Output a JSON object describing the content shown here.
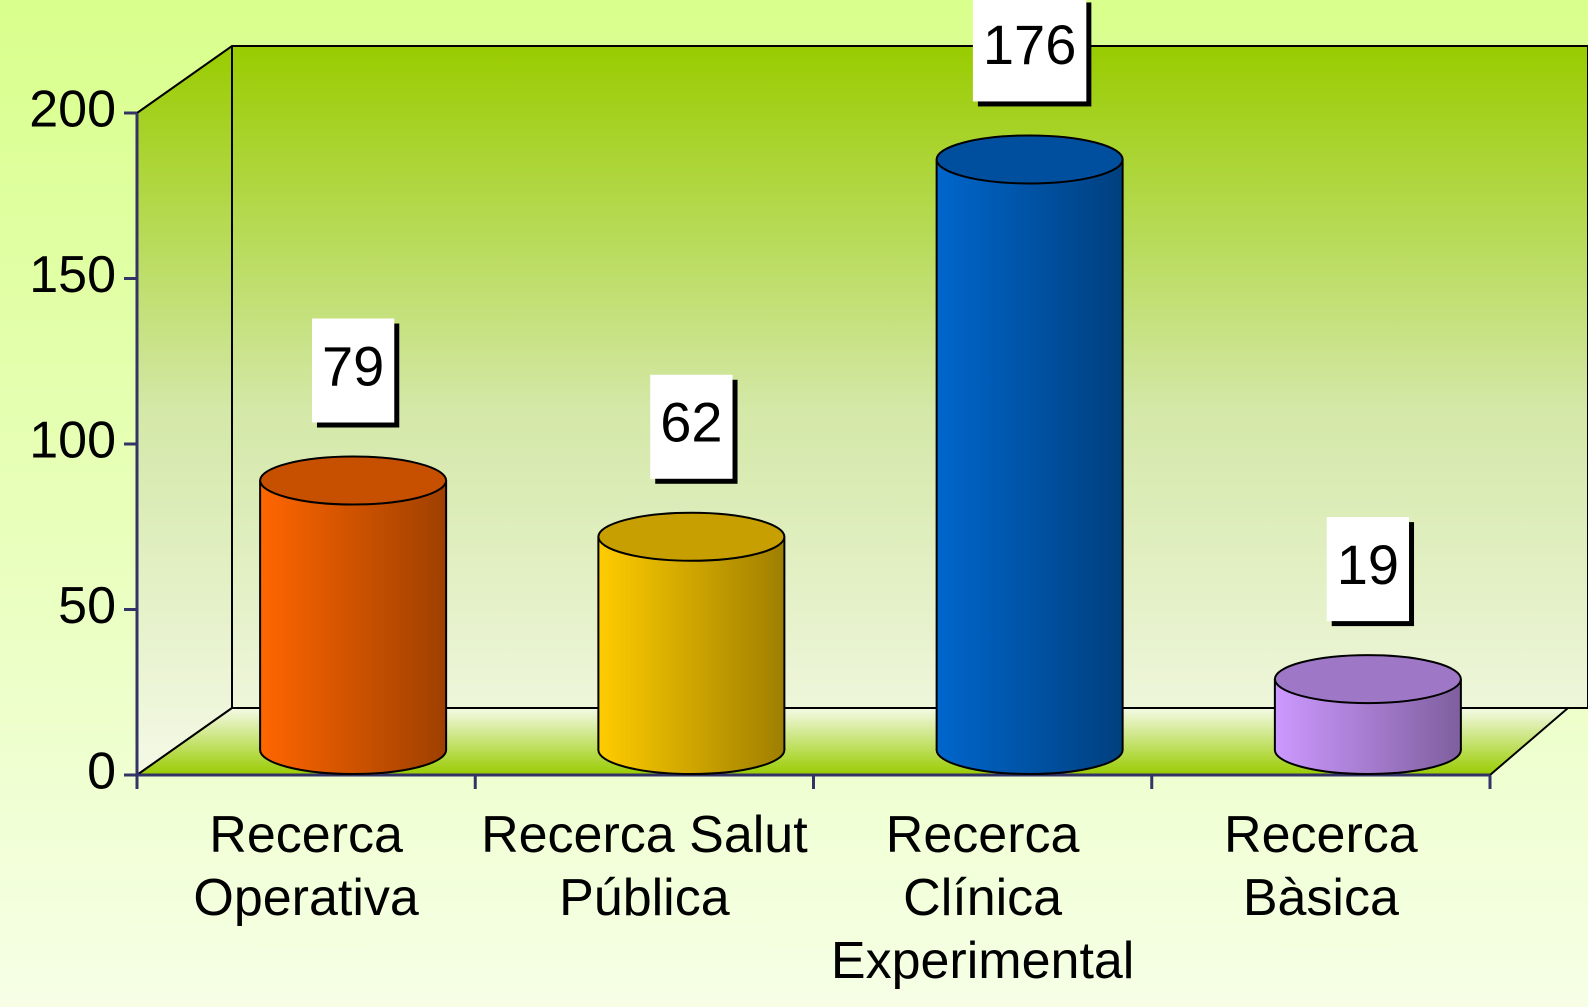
{
  "chart_data": {
    "type": "bar",
    "categories": [
      "Recerca Operativa",
      "Recerca Salut Pública",
      "Recerca Clínica Experimental",
      "Recerca Bàsica"
    ],
    "values": [
      79,
      62,
      176,
      19
    ],
    "colors": [
      "#ff6600",
      "#ffcc00",
      "#0066cc",
      "#cc99ff"
    ],
    "ylim": [
      0,
      200
    ],
    "yticks": [
      0,
      50,
      100,
      150,
      200
    ]
  }
}
